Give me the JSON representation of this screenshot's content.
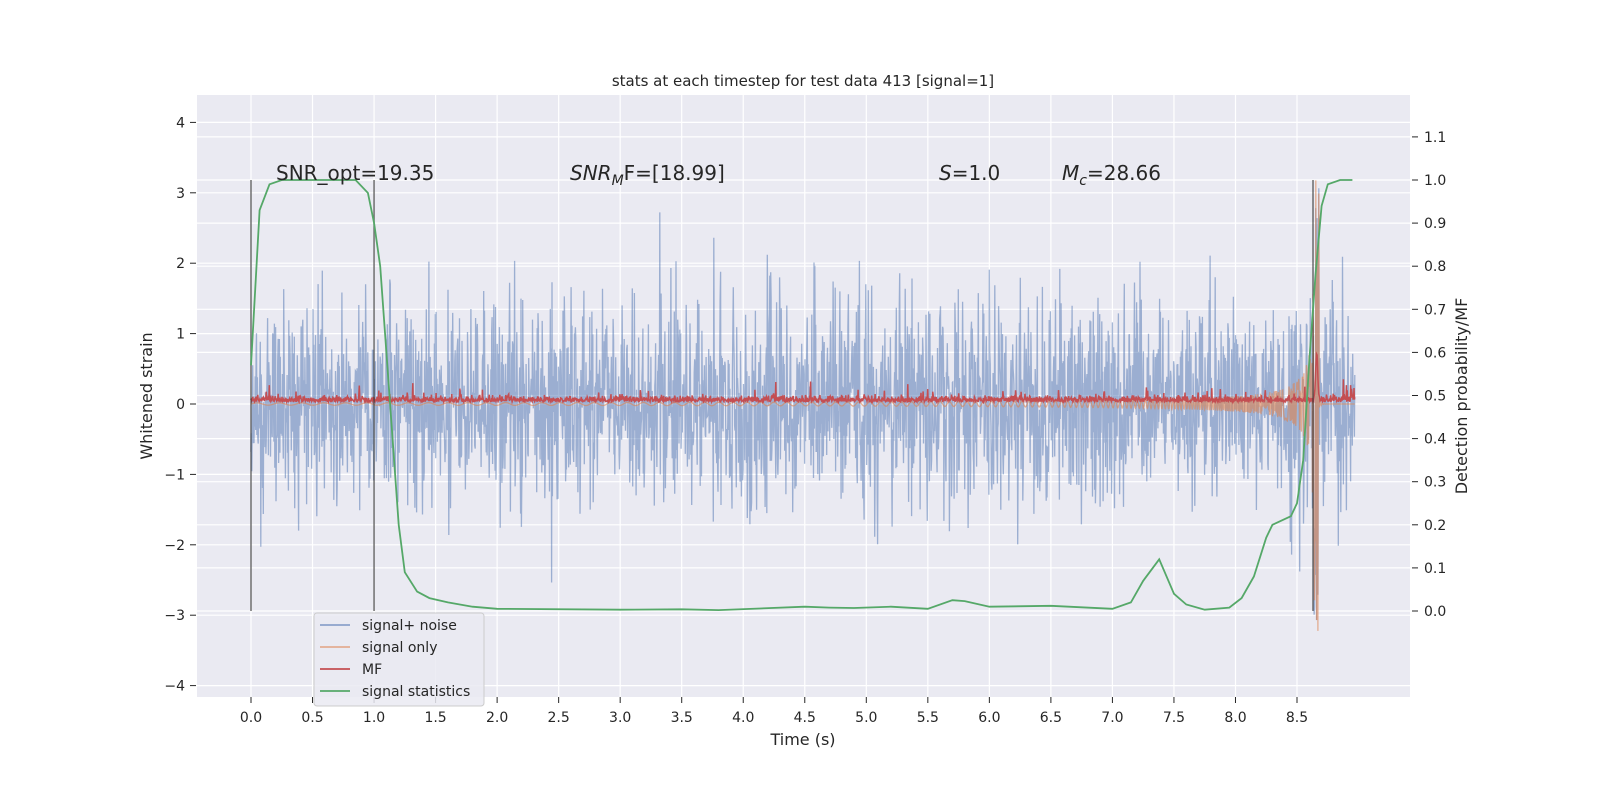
{
  "chart_data": {
    "type": "line",
    "title": "stats at each timestep for test data 413 [signal=1]",
    "xlabel": "Time (s)",
    "ylabel": "Whitened strain",
    "y2label": "Detection probability/MF",
    "xlim": [
      -0.44,
      9.42
    ],
    "ylim": [
      -4.2,
      4.4
    ],
    "y2lim": [
      -0.2,
      1.2
    ],
    "xticks": [
      "0.0",
      "0.5",
      "1.0",
      "1.5",
      "2.0",
      "2.5",
      "3.0",
      "3.5",
      "4.0",
      "4.5",
      "5.0",
      "5.5",
      "6.0",
      "6.5",
      "7.0",
      "7.5",
      "8.0",
      "8.5"
    ],
    "yticks": [
      "4",
      "3",
      "2",
      "1",
      "0",
      "−1",
      "−2",
      "−3",
      "−4"
    ],
    "y2ticks": [
      "1.1",
      "1.0",
      "0.9",
      "0.8",
      "0.7",
      "0.6",
      "0.5",
      "0.4",
      "0.3",
      "0.2",
      "0.1",
      "0.0"
    ],
    "grid": true,
    "legend_position": "lower-left",
    "annotations": [
      "SNR_opt=19.35",
      "SNR",
      "M",
      "F=[18.99]",
      "S",
      "=1.0",
      "M",
      "c",
      "=28.66"
    ],
    "series": [
      {
        "name": "signal+ noise",
        "color": "#4c72b0",
        "t_range": [
          0,
          8.97
        ],
        "noise_std": 0.72,
        "max_abs": 2.7
      },
      {
        "name": "signal only",
        "color": "#dd8452",
        "merger_time": 8.65,
        "peak_amplitude": 3.3
      },
      {
        "name": "MF",
        "color": "#c44e52",
        "baseline": 0.05,
        "peak_time": 8.66,
        "peak_value": 0.65
      },
      {
        "name": "signal statistics",
        "color": "#55a868",
        "axis": "right",
        "t": [
          0,
          0.07,
          0.15,
          0.25,
          0.85,
          0.95,
          1.0,
          1.05,
          1.1,
          1.2,
          1.25,
          1.35,
          1.45,
          1.6,
          1.8,
          2.0,
          3.0,
          3.5,
          3.8,
          4.5,
          4.7,
          4.9,
          5.2,
          5.5,
          5.7,
          5.8,
          6.0,
          6.5,
          7.0,
          7.15,
          7.25,
          7.38,
          7.5,
          7.6,
          7.75,
          7.95,
          8.05,
          8.15,
          8.25,
          8.3,
          8.45,
          8.5,
          8.55,
          8.6,
          8.65,
          8.7,
          8.75,
          8.85,
          8.95
        ],
        "p": [
          0.57,
          0.93,
          0.99,
          1.0,
          1.0,
          0.97,
          0.9,
          0.8,
          0.6,
          0.2,
          0.09,
          0.045,
          0.03,
          0.02,
          0.01,
          0.005,
          0.003,
          0.004,
          0.002,
          0.01,
          0.008,
          0.007,
          0.01,
          0.005,
          0.025,
          0.023,
          0.01,
          0.012,
          0.005,
          0.02,
          0.07,
          0.12,
          0.04,
          0.015,
          0.003,
          0.008,
          0.03,
          0.08,
          0.17,
          0.2,
          0.22,
          0.25,
          0.35,
          0.58,
          0.78,
          0.94,
          0.99,
          1.0,
          1.0
        ]
      }
    ],
    "vertical_markers": [
      0.0,
      1.0,
      8.63
    ]
  }
}
